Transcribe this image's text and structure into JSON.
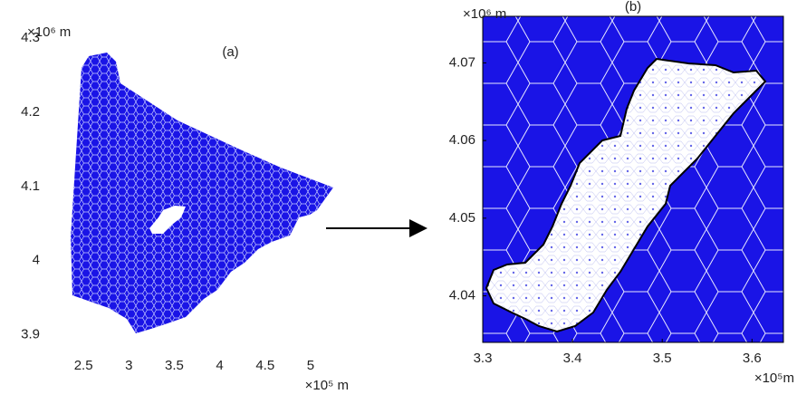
{
  "chart_data": [
    {
      "type": "mesh",
      "title": "(a)",
      "x_exponent_label": "×10⁵ m",
      "y_exponent_label": "×10⁶ m",
      "xlim": [
        2.1,
        5.3
      ],
      "ylim": [
        3.88,
        4.3
      ],
      "xticks": [
        2.5,
        3,
        3.5,
        4,
        4.5,
        5
      ],
      "yticks": [
        3.9,
        4,
        4.1,
        4.2,
        4.3
      ],
      "box": false,
      "color": "#1a14e6"
    },
    {
      "type": "mesh",
      "title": "(b)",
      "x_exponent_label": "×10⁵m",
      "y_exponent_label": "×10⁶ m",
      "xlim": [
        3.3,
        3.635
      ],
      "ylim": [
        4.034,
        4.076
      ],
      "xticks": [
        3.3,
        3.4,
        3.5,
        3.6
      ],
      "yticks": [
        4.04,
        4.05,
        4.06,
        4.07
      ],
      "box": true,
      "color": "#1a14e6"
    }
  ]
}
